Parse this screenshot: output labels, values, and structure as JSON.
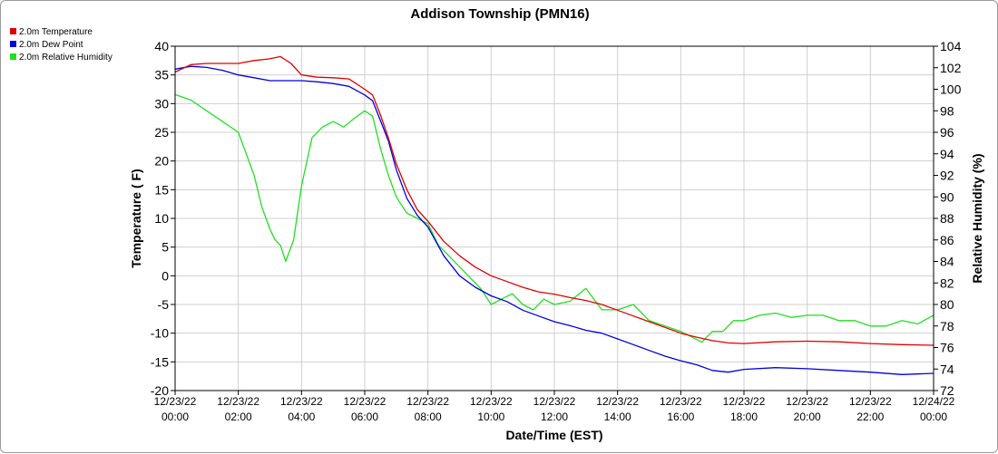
{
  "chart_data": {
    "type": "line",
    "title": "Addison Township (PMN16)",
    "xlabel": "Date/Time (EST)",
    "ylabel": "Temperature ( F)",
    "y2label": "Relative Humidity (%)",
    "xlim": [
      "12/23/22 00:00",
      "12/24/22 00:00"
    ],
    "ylim": [
      -20,
      40
    ],
    "y2lim": [
      72,
      104
    ],
    "grid": true,
    "legend": "top-left",
    "x_tick_labels": [
      [
        "12/23/22",
        "00:00"
      ],
      [
        "12/23/22",
        "02:00"
      ],
      [
        "12/23/22",
        "04:00"
      ],
      [
        "12/23/22",
        "06:00"
      ],
      [
        "12/23/22",
        "08:00"
      ],
      [
        "12/23/22",
        "10:00"
      ],
      [
        "12/23/22",
        "12:00"
      ],
      [
        "12/23/22",
        "14:00"
      ],
      [
        "12/23/22",
        "16:00"
      ],
      [
        "12/23/22",
        "18:00"
      ],
      [
        "12/23/22",
        "20:00"
      ],
      [
        "12/23/22",
        "22:00"
      ],
      [
        "12/24/22",
        "00:00"
      ]
    ],
    "y_ticks": [
      40,
      35,
      30,
      25,
      20,
      15,
      10,
      5,
      0,
      -5,
      -10,
      -15,
      -20
    ],
    "y2_ticks": [
      104,
      102,
      100,
      98,
      96,
      94,
      92,
      90,
      88,
      86,
      84,
      82,
      80,
      78,
      76,
      74,
      72
    ],
    "series": [
      {
        "name": "2.0m Temperature",
        "axis": "left",
        "color": "#e00000",
        "x": [
          "12/23/22 00:00",
          "12/23/22 00:30",
          "12/23/22 01:00",
          "12/23/22 01:30",
          "12/23/22 02:00",
          "12/23/22 02:30",
          "12/23/22 03:00",
          "12/23/22 03:20",
          "12/23/22 03:40",
          "12/23/22 04:00",
          "12/23/22 04:30",
          "12/23/22 05:00",
          "12/23/22 05:30",
          "12/23/22 06:00",
          "12/23/22 06:15",
          "12/23/22 06:30",
          "12/23/22 06:45",
          "12/23/22 07:00",
          "12/23/22 07:20",
          "12/23/22 07:40",
          "12/23/22 08:00",
          "12/23/22 08:30",
          "12/23/22 09:00",
          "12/23/22 09:30",
          "12/23/22 10:00",
          "12/23/22 10:30",
          "12/23/22 11:00",
          "12/23/22 11:30",
          "12/23/22 12:00",
          "12/23/22 12:30",
          "12/23/22 13:00",
          "12/23/22 13:30",
          "12/23/22 14:00",
          "12/23/22 14:30",
          "12/23/22 15:00",
          "12/23/22 15:30",
          "12/23/22 16:00",
          "12/23/22 16:30",
          "12/23/22 17:00",
          "12/23/22 17:30",
          "12/23/22 18:00",
          "12/23/22 19:00",
          "12/23/22 20:00",
          "12/23/22 21:00",
          "12/23/22 22:00",
          "12/23/22 23:00",
          "12/24/22 00:00"
        ],
        "y": [
          35.5,
          36.8,
          37.0,
          37.0,
          37.0,
          37.5,
          37.8,
          38.2,
          37.0,
          35.0,
          34.6,
          34.5,
          34.3,
          32.5,
          31.5,
          28.0,
          24.0,
          19.5,
          15.0,
          11.5,
          9.5,
          6.0,
          3.5,
          1.5,
          0.0,
          -1.0,
          -2.0,
          -2.8,
          -3.2,
          -3.8,
          -4.3,
          -5.0,
          -6.0,
          -7.0,
          -8.0,
          -9.0,
          -10.0,
          -10.7,
          -11.3,
          -11.7,
          -11.8,
          -11.5,
          -11.4,
          -11.5,
          -11.8,
          -12.0,
          -12.1
        ]
      },
      {
        "name": "2.0m Dew Point",
        "axis": "left",
        "color": "#0000e0",
        "x": [
          "12/23/22 00:00",
          "12/23/22 00:30",
          "12/23/22 01:00",
          "12/23/22 01:30",
          "12/23/22 02:00",
          "12/23/22 02:30",
          "12/23/22 03:00",
          "12/23/22 03:30",
          "12/23/22 04:00",
          "12/23/22 04:30",
          "12/23/22 05:00",
          "12/23/22 05:30",
          "12/23/22 06:00",
          "12/23/22 06:15",
          "12/23/22 06:30",
          "12/23/22 06:45",
          "12/23/22 07:00",
          "12/23/22 07:20",
          "12/23/22 07:40",
          "12/23/22 08:00",
          "12/23/22 08:30",
          "12/23/22 09:00",
          "12/23/22 09:30",
          "12/23/22 10:00",
          "12/23/22 10:30",
          "12/23/22 11:00",
          "12/23/22 11:30",
          "12/23/22 12:00",
          "12/23/22 12:30",
          "12/23/22 13:00",
          "12/23/22 13:30",
          "12/23/22 14:00",
          "12/23/22 14:30",
          "12/23/22 15:00",
          "12/23/22 15:30",
          "12/23/22 16:00",
          "12/23/22 16:30",
          "12/23/22 17:00",
          "12/23/22 17:30",
          "12/23/22 18:00",
          "12/23/22 19:00",
          "12/23/22 20:00",
          "12/23/22 21:00",
          "12/23/22 22:00",
          "12/23/22 23:00",
          "12/24/22 00:00"
        ],
        "y": [
          36.0,
          36.5,
          36.3,
          35.8,
          35.0,
          34.5,
          34.0,
          34.0,
          34.0,
          33.8,
          33.5,
          33.0,
          31.5,
          30.5,
          27.0,
          23.5,
          18.5,
          13.5,
          10.5,
          8.5,
          3.5,
          0.0,
          -2.0,
          -3.5,
          -4.5,
          -6.0,
          -7.0,
          -8.0,
          -8.7,
          -9.5,
          -10.0,
          -11.0,
          -12.0,
          -13.0,
          -14.0,
          -14.8,
          -15.5,
          -16.5,
          -16.8,
          -16.3,
          -16.0,
          -16.2,
          -16.5,
          -16.8,
          -17.2,
          -17.0
        ]
      },
      {
        "name": "2.0m Relative Humidity",
        "axis": "right",
        "color": "#20e020",
        "x": [
          "12/23/22 00:00",
          "12/23/22 00:30",
          "12/23/22 01:00",
          "12/23/22 01:30",
          "12/23/22 02:00",
          "12/23/22 02:15",
          "12/23/22 02:30",
          "12/23/22 02:45",
          "12/23/22 03:00",
          "12/23/22 03:10",
          "12/23/22 03:20",
          "12/23/22 03:30",
          "12/23/22 03:45",
          "12/23/22 04:00",
          "12/23/22 04:20",
          "12/23/22 04:40",
          "12/23/22 05:00",
          "12/23/22 05:20",
          "12/23/22 05:40",
          "12/23/22 06:00",
          "12/23/22 06:15",
          "12/23/22 06:30",
          "12/23/22 06:45",
          "12/23/22 07:00",
          "12/23/22 07:20",
          "12/23/22 07:40",
          "12/23/22 08:00",
          "12/23/22 08:20",
          "12/23/22 08:40",
          "12/23/22 09:00",
          "12/23/22 09:20",
          "12/23/22 09:40",
          "12/23/22 10:00",
          "12/23/22 10:20",
          "12/23/22 10:40",
          "12/23/22 11:00",
          "12/23/22 11:20",
          "12/23/22 11:40",
          "12/23/22 12:00",
          "12/23/22 12:30",
          "12/23/22 13:00",
          "12/23/22 13:30",
          "12/23/22 14:00",
          "12/23/22 14:30",
          "12/23/22 15:00",
          "12/23/22 15:30",
          "12/23/22 16:00",
          "12/23/22 16:20",
          "12/23/22 16:40",
          "12/23/22 17:00",
          "12/23/22 17:20",
          "12/23/22 17:40",
          "12/23/22 18:00",
          "12/23/22 18:30",
          "12/23/22 19:00",
          "12/23/22 19:30",
          "12/23/22 20:00",
          "12/23/22 20:30",
          "12/23/22 21:00",
          "12/23/22 21:30",
          "12/23/22 22:00",
          "12/23/22 22:30",
          "12/23/22 23:00",
          "12/23/22 23:30",
          "12/24/22 00:00"
        ],
        "y": [
          99.5,
          99.0,
          98.0,
          97.0,
          96.0,
          94.0,
          92.0,
          89.0,
          87.0,
          86.0,
          85.5,
          84.0,
          86.0,
          91.0,
          95.5,
          96.5,
          97.0,
          96.5,
          97.3,
          98.0,
          97.5,
          94.5,
          92.0,
          90.0,
          88.5,
          88.0,
          87.5,
          85.5,
          84.5,
          83.5,
          82.5,
          81.5,
          80.0,
          80.5,
          81.0,
          80.0,
          79.5,
          80.5,
          80.0,
          80.3,
          81.5,
          79.5,
          79.5,
          80.0,
          78.5,
          78.0,
          77.5,
          77.0,
          76.5,
          77.5,
          77.5,
          78.5,
          78.5,
          79.0,
          79.2,
          78.8,
          79.0,
          79.0,
          78.5,
          78.5,
          78.0,
          78.0,
          78.5,
          78.2,
          79.0
        ]
      }
    ]
  }
}
